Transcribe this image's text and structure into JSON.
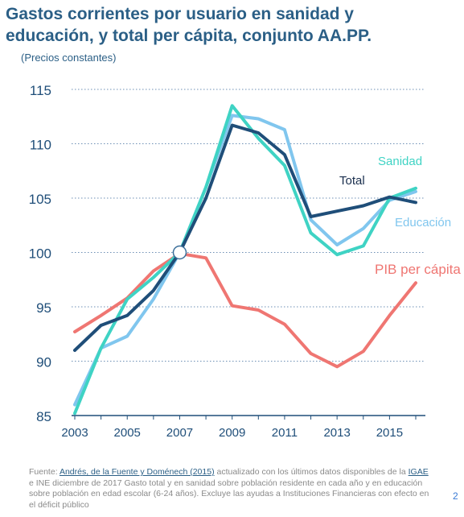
{
  "title_line1": "Gastos corrientes por usuario en sanidad y",
  "title_line2": "educación, y total per cápita, conjunto AA.PP.",
  "subtitle": "(Precios constantes)",
  "footer": {
    "prefix": "Fuente: ",
    "source_link": "Andrés, de la Fuente y Doménech (2015)",
    "text1": " actualizado con los últimos datos disponibles de la ",
    "igae_link": "IGAE",
    "text2": " e INE diciembre de 2017 Gasto total y en sanidad sobre población residente en cada año y en educación sobre población en edad escolar (6-24 años). Excluye las ayudas a Instituciones Financieras con efecto en el déficit público"
  },
  "page_number": "2",
  "chart_data": {
    "type": "line",
    "title": "Gastos corrientes por usuario en sanidad y educación, y total per cápita, conjunto AA.PP.",
    "subtitle": "(Precios constantes)",
    "xlabel": "",
    "ylabel": "",
    "xlim": [
      2003,
      2016
    ],
    "ylim": [
      85,
      115
    ],
    "x_ticks": [
      "2003",
      "2005",
      "2007",
      "2009",
      "2011",
      "2013",
      "2015"
    ],
    "y_ticks": [
      "85",
      "90",
      "95",
      "100",
      "105",
      "110",
      "115"
    ],
    "grid": "horizontal dotted",
    "x": [
      2003,
      2004,
      2005,
      2006,
      2007,
      2008,
      2009,
      2010,
      2011,
      2012,
      2013,
      2014,
      2015,
      2016
    ],
    "series": [
      {
        "name": "Total",
        "color": "#1f4e79",
        "values": [
          91.0,
          93.3,
          94.2,
          96.5,
          100.0,
          105.0,
          111.7,
          111.0,
          109.0,
          103.3,
          103.8,
          104.3,
          105.1,
          104.6
        ]
      },
      {
        "name": "Sanidad",
        "color": "#3fd3c4",
        "values": [
          85.2,
          91.2,
          95.7,
          97.7,
          100.0,
          106.0,
          113.5,
          110.5,
          108.0,
          101.8,
          99.8,
          100.6,
          105.0,
          105.9
        ]
      },
      {
        "name": "Educación",
        "color": "#80c6ee",
        "values": [
          86.0,
          91.2,
          92.3,
          95.7,
          100.0,
          106.0,
          112.6,
          112.3,
          111.3,
          103.0,
          100.7,
          102.2,
          104.8,
          105.6
        ]
      },
      {
        "name": "PIB per cápita",
        "color": "#ef7672",
        "values": [
          92.7,
          94.2,
          95.8,
          98.3,
          99.9,
          99.5,
          95.1,
          94.7,
          93.4,
          90.7,
          89.5,
          90.9,
          94.2,
          97.2
        ]
      }
    ],
    "base_marker": {
      "x": 2007,
      "y": 100
    }
  }
}
